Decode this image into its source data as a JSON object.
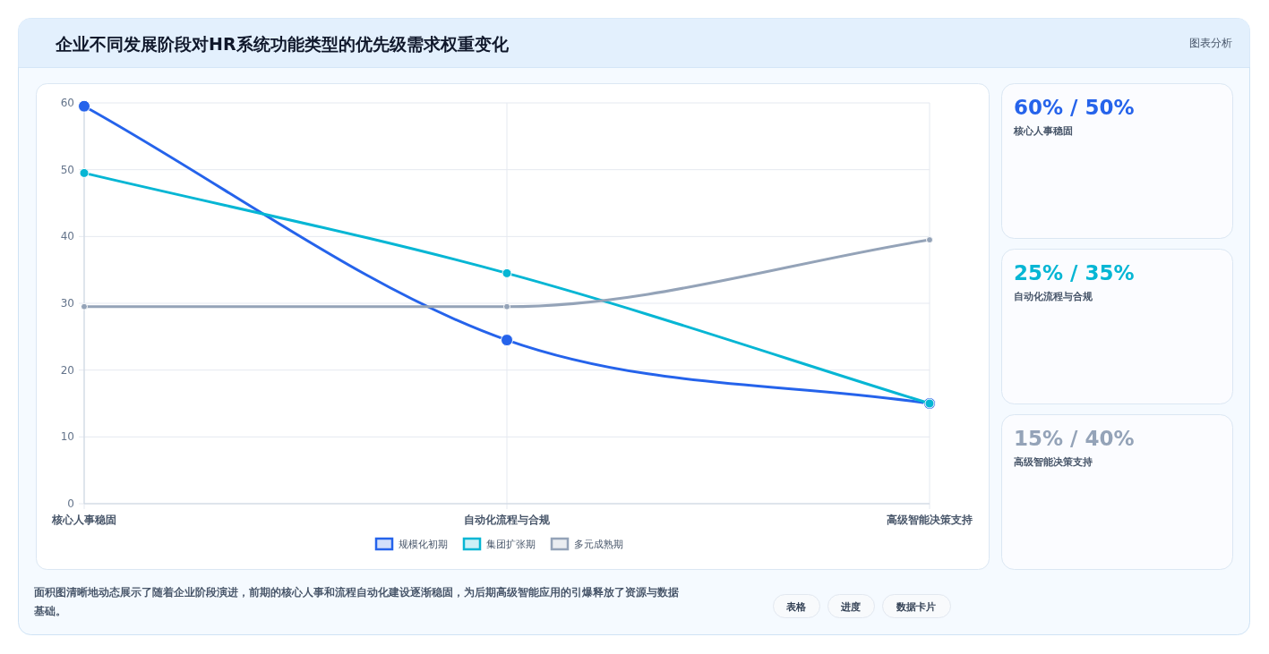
{
  "chart_data": [
    {
      "type": "line",
      "title": "企业不同发展阶段对HR系统功能类型的优先级需求权重变化",
      "categories": [
        "核心人事稳固",
        "自动化流程与合规",
        "高级智能决策支持"
      ],
      "series": [
        {
          "name": "规模化初期",
          "color": "#2563eb",
          "values": [
            59.5,
            24.5,
            15
          ]
        },
        {
          "name": "集团扩张期",
          "color": "#06b6d4",
          "values": [
            49.5,
            34.5,
            15
          ]
        },
        {
          "name": "多元成熟期",
          "color": "#94a3b8",
          "values": [
            29.5,
            29.5,
            39.5
          ]
        }
      ],
      "ylim": [
        0,
        60
      ],
      "yticks": [
        0,
        10,
        20,
        30,
        40,
        50,
        60
      ],
      "grid": true,
      "legend": "bottom",
      "marker": "circle",
      "line_style": "solid",
      "annotations": [
        "图表分析",
        "面积图清晰地动态展示了随着企业阶段演进，前期的核心人事和流程自动化建设逐渐稳固，为后期高级智能应用的引爆释放了资源与数据基础。",
        "表格",
        "进度",
        "数据卡片"
      ]
    },
    {
      "type": "other",
      "categories": [
        "60% / 50%",
        "25% / 35%",
        "15% / 40%"
      ],
      "annotations": [
        "核心人事稳固",
        "自动化流程与合规",
        "高级智能决策支持"
      ]
    }
  ]
}
